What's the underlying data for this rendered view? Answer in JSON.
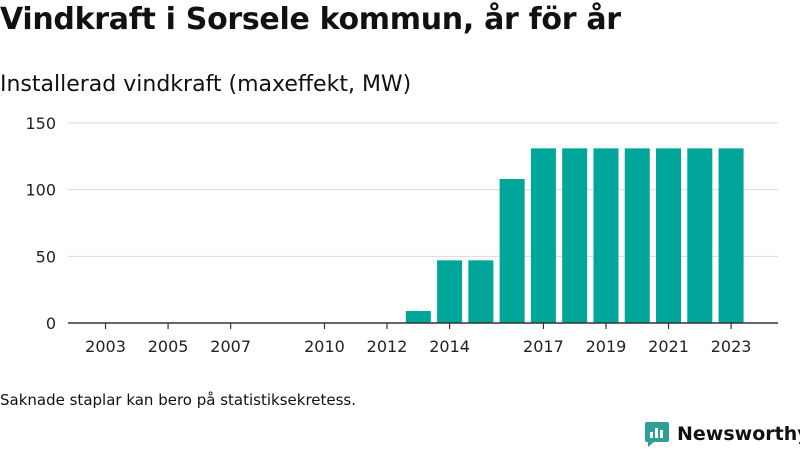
{
  "title": "Vindkraft i Sorsele kommun, år för år",
  "subtitle": "Installerad vindkraft (maxeffekt, MW)",
  "footnote": "Saknade staplar kan bero på statistiksekretess.",
  "brand": {
    "name": "Newsworthy",
    "icon": "newsworthy-logo-icon",
    "color": "#2f9e95"
  },
  "chart_data": {
    "type": "bar",
    "title": "",
    "xlabel": "",
    "ylabel": "",
    "bar_color": "#00a69a",
    "ylim": [
      0,
      150
    ],
    "yticks": [
      0,
      50,
      100,
      150
    ],
    "xlim": [
      2001.8,
      2024.5
    ],
    "xticks": [
      2003,
      2005,
      2007,
      2010,
      2012,
      2014,
      2017,
      2019,
      2021,
      2023
    ],
    "grid": "horizontal",
    "points": [
      {
        "x": 2013,
        "y": 9
      },
      {
        "x": 2014,
        "y": 47
      },
      {
        "x": 2015,
        "y": 47
      },
      {
        "x": 2016,
        "y": 108
      },
      {
        "x": 2017,
        "y": 131
      },
      {
        "x": 2018,
        "y": 131
      },
      {
        "x": 2019,
        "y": 131
      },
      {
        "x": 2020,
        "y": 131
      },
      {
        "x": 2021,
        "y": 131
      },
      {
        "x": 2022,
        "y": 131
      },
      {
        "x": 2023,
        "y": 131
      }
    ]
  }
}
